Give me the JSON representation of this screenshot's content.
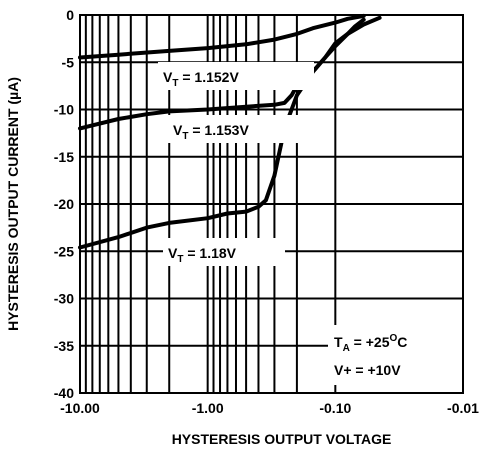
{
  "chart_data": {
    "type": "line",
    "title": "",
    "xlabel": "HYSTERESIS OUTPUT VOLTAGE",
    "ylabel": "HYSTERESIS OUTPUT CURRENT (µA)",
    "x_scale": "log",
    "xlim": [
      -10.0,
      -0.01
    ],
    "ylim": [
      -40,
      0
    ],
    "grid": true,
    "x_ticks": [
      {
        "value": -10.0,
        "label": "-10.00"
      },
      {
        "value": -1.0,
        "label": "-1.00"
      },
      {
        "value": -0.1,
        "label": "-0.10"
      },
      {
        "value": -0.01,
        "label": "-0.01"
      }
    ],
    "y_ticks": [
      {
        "value": 0,
        "label": "0"
      },
      {
        "value": -5,
        "label": "-5"
      },
      {
        "value": -10,
        "label": "-10"
      },
      {
        "value": -15,
        "label": "-15"
      },
      {
        "value": -20,
        "label": "-20"
      },
      {
        "value": -25,
        "label": "-25"
      },
      {
        "value": -30,
        "label": "-30"
      },
      {
        "value": -35,
        "label": "-35"
      },
      {
        "value": -40,
        "label": "-40"
      }
    ],
    "series": [
      {
        "name": "V_T = 1.152V",
        "label_main": "V",
        "label_sub": "T",
        "label_rest": " = 1.152V",
        "points": [
          [
            -10.0,
            -4.5
          ],
          [
            -5.0,
            -4.2
          ],
          [
            -2.0,
            -3.8
          ],
          [
            -1.0,
            -3.5
          ],
          [
            -0.5,
            -3.1
          ],
          [
            -0.3,
            -2.6
          ],
          [
            -0.2,
            -2.0
          ],
          [
            -0.15,
            -1.4
          ],
          [
            -0.1,
            -0.8
          ],
          [
            -0.08,
            -0.4
          ],
          [
            -0.06,
            -0.1
          ]
        ]
      },
      {
        "name": "V_T = 1.153V",
        "label_main": "V",
        "label_sub": "T",
        "label_rest": " = 1.153V",
        "points": [
          [
            -10.0,
            -12.0
          ],
          [
            -5.0,
            -11.0
          ],
          [
            -3.0,
            -10.5
          ],
          [
            -2.0,
            -10.2
          ],
          [
            -1.0,
            -10.0
          ],
          [
            -0.5,
            -9.7
          ],
          [
            -0.3,
            -9.5
          ],
          [
            -0.25,
            -9.3
          ],
          [
            -0.22,
            -8.5
          ],
          [
            -0.2,
            -7.5
          ],
          [
            -0.15,
            -6.0
          ],
          [
            -0.12,
            -4.5
          ],
          [
            -0.1,
            -3.3
          ],
          [
            -0.08,
            -2.0
          ],
          [
            -0.06,
            -1.0
          ],
          [
            -0.045,
            -0.3
          ]
        ]
      },
      {
        "name": "V_T = 1.18V",
        "label_main": "V",
        "label_sub": "T",
        "label_rest": " = 1.18V",
        "points": [
          [
            -10.0,
            -24.6
          ],
          [
            -5.0,
            -23.5
          ],
          [
            -3.0,
            -22.5
          ],
          [
            -2.0,
            -22.0
          ],
          [
            -1.0,
            -21.5
          ],
          [
            -0.7,
            -21.0
          ],
          [
            -0.5,
            -20.8
          ],
          [
            -0.4,
            -20.3
          ],
          [
            -0.35,
            -19.6
          ],
          [
            -0.3,
            -17.0
          ],
          [
            -0.25,
            -12.0
          ],
          [
            -0.2,
            -8.5
          ],
          [
            -0.15,
            -6.0
          ],
          [
            -0.12,
            -4.5
          ],
          [
            -0.1,
            -3.0
          ],
          [
            -0.08,
            -2.0
          ],
          [
            -0.07,
            -1.2
          ],
          [
            -0.06,
            -0.5
          ]
        ]
      }
    ],
    "conditions": [
      {
        "main": "T",
        "sub": "A",
        "rest": " = +25",
        "sup": "O",
        "tail": "C"
      },
      {
        "main": "V+ = +10V",
        "sub": "",
        "rest": "",
        "sup": "",
        "tail": ""
      }
    ]
  }
}
